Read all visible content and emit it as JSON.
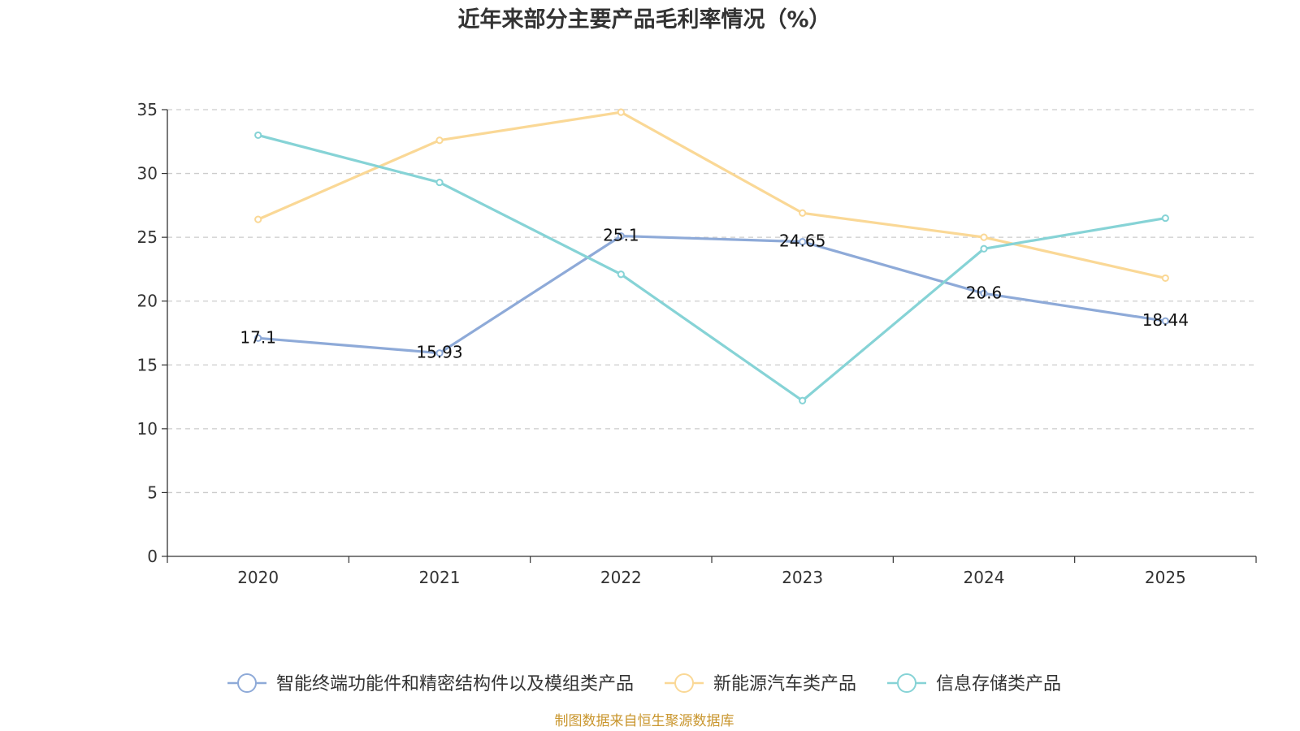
{
  "chart_data": {
    "type": "line",
    "title": "近年来部分主要产品毛利率情况（%）",
    "categories": [
      "2020",
      "2021",
      "2022",
      "2023",
      "2024",
      "2025"
    ],
    "ylim": [
      0,
      35
    ],
    "yticks": [
      "0",
      "5",
      "10",
      "15",
      "20",
      "25",
      "30",
      "35"
    ],
    "ytick_values": [
      0,
      5,
      10,
      15,
      20,
      25,
      30,
      35
    ],
    "grid": true,
    "legend_position": "bottom-center",
    "series": [
      {
        "name": "智能终端功能件和精密结构件以及模组类产品",
        "color": "#8eaad8",
        "values": [
          17.1,
          15.93,
          25.1,
          24.65,
          20.6,
          18.44
        ],
        "labels": [
          "17.1",
          "15.93",
          "25.1",
          "24.65",
          "20.6",
          "18.44"
        ],
        "show_labels": true
      },
      {
        "name": "新能源汽车类产品",
        "color": "#fad896",
        "values": [
          26.4,
          32.6,
          34.8,
          26.9,
          25.0,
          21.8
        ],
        "show_labels": false
      },
      {
        "name": "信息存储类产品",
        "color": "#86d3d6",
        "values": [
          33.0,
          29.3,
          22.1,
          12.2,
          24.1,
          26.5
        ],
        "show_labels": false
      }
    ]
  },
  "source_text": "制图数据来自恒生聚源数据库",
  "source_color": "#c9962e"
}
